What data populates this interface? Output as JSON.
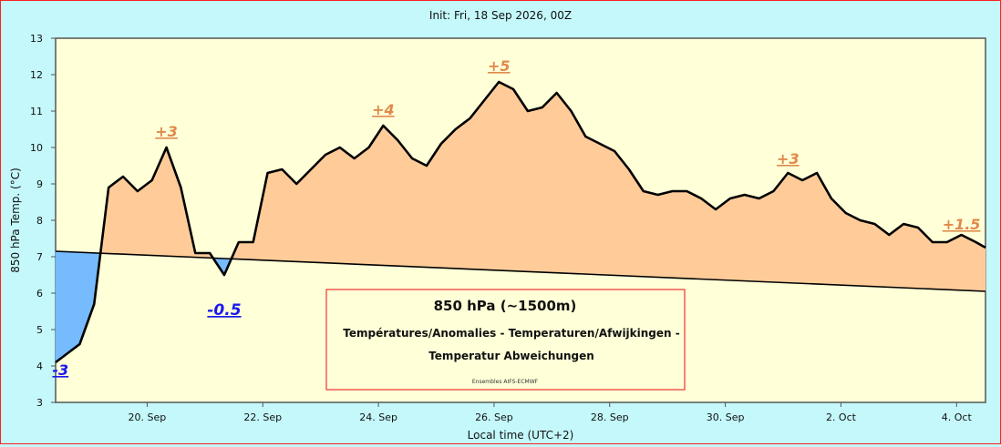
{
  "chart_data": {
    "type": "area",
    "title": "Init: Fri, 18 Sep 2026, 00Z",
    "xlabel": "Local time (UTC+2)",
    "ylabel": "850 hPa Temp. (°C)",
    "ylim": [
      3,
      13
    ],
    "yticks": [
      "3",
      "4",
      "5",
      "6",
      "7",
      "8",
      "9",
      "10",
      "11",
      "12",
      "13"
    ],
    "x_start": "2026-09-18T10:00",
    "x_end": "2026-10-04T12:00",
    "xticks": [
      {
        "label": "20. Sep",
        "at": "2026-09-20T00:00"
      },
      {
        "label": "22. Sep",
        "at": "2026-09-22T00:00"
      },
      {
        "label": "24. Sep",
        "at": "2026-09-24T00:00"
      },
      {
        "label": "26. Sep",
        "at": "2026-09-26T00:00"
      },
      {
        "label": "28. Sep",
        "at": "2026-09-28T00:00"
      },
      {
        "label": "30. Sep",
        "at": "2026-09-30T00:00"
      },
      {
        "label": "2. Oct",
        "at": "2026-10-02T00:00"
      },
      {
        "label": "4. Oct",
        "at": "2026-10-04T00:00"
      }
    ],
    "grid": false,
    "series": [
      {
        "role": "temperature",
        "color": "#000000",
        "points": [
          [
            "2026-09-18T10:00",
            4.1
          ],
          [
            "2026-09-18T15:00",
            4.35
          ],
          [
            "2026-09-18T20:00",
            4.6
          ],
          [
            "2026-09-19T02:00",
            5.7
          ],
          [
            "2026-09-19T08:00",
            8.9
          ],
          [
            "2026-09-19T14:00",
            9.2
          ],
          [
            "2026-09-19T20:00",
            8.8
          ],
          [
            "2026-09-20T02:00",
            9.1
          ],
          [
            "2026-09-20T08:00",
            10.0
          ],
          [
            "2026-09-20T14:00",
            8.9
          ],
          [
            "2026-09-20T20:00",
            7.1
          ],
          [
            "2026-09-21T02:00",
            7.1
          ],
          [
            "2026-09-21T08:00",
            6.5
          ],
          [
            "2026-09-21T14:00",
            7.4
          ],
          [
            "2026-09-21T20:00",
            7.4
          ],
          [
            "2026-09-22T02:00",
            9.3
          ],
          [
            "2026-09-22T08:00",
            9.4
          ],
          [
            "2026-09-22T14:00",
            9.0
          ],
          [
            "2026-09-22T20:00",
            9.4
          ],
          [
            "2026-09-23T02:00",
            9.8
          ],
          [
            "2026-09-23T08:00",
            10.0
          ],
          [
            "2026-09-23T14:00",
            9.7
          ],
          [
            "2026-09-23T20:00",
            10.0
          ],
          [
            "2026-09-24T02:00",
            10.6
          ],
          [
            "2026-09-24T08:00",
            10.2
          ],
          [
            "2026-09-24T14:00",
            9.7
          ],
          [
            "2026-09-24T20:00",
            9.5
          ],
          [
            "2026-09-25T02:00",
            10.1
          ],
          [
            "2026-09-25T08:00",
            10.5
          ],
          [
            "2026-09-25T14:00",
            10.8
          ],
          [
            "2026-09-25T20:00",
            11.3
          ],
          [
            "2026-09-26T02:00",
            11.8
          ],
          [
            "2026-09-26T08:00",
            11.6
          ],
          [
            "2026-09-26T14:00",
            11.0
          ],
          [
            "2026-09-26T20:00",
            11.1
          ],
          [
            "2026-09-27T02:00",
            11.5
          ],
          [
            "2026-09-27T08:00",
            11.0
          ],
          [
            "2026-09-27T14:00",
            10.3
          ],
          [
            "2026-09-27T20:00",
            10.1
          ],
          [
            "2026-09-28T02:00",
            9.9
          ],
          [
            "2026-09-28T08:00",
            9.4
          ],
          [
            "2026-09-28T14:00",
            8.8
          ],
          [
            "2026-09-28T20:00",
            8.7
          ],
          [
            "2026-09-29T02:00",
            8.8
          ],
          [
            "2026-09-29T08:00",
            8.8
          ],
          [
            "2026-09-29T14:00",
            8.6
          ],
          [
            "2026-09-29T20:00",
            8.3
          ],
          [
            "2026-09-30T02:00",
            8.6
          ],
          [
            "2026-09-30T08:00",
            8.7
          ],
          [
            "2026-09-30T14:00",
            8.6
          ],
          [
            "2026-09-30T20:00",
            8.8
          ],
          [
            "2026-10-01T02:00",
            9.3
          ],
          [
            "2026-10-01T08:00",
            9.1
          ],
          [
            "2026-10-01T14:00",
            9.3
          ],
          [
            "2026-10-01T20:00",
            8.6
          ],
          [
            "2026-10-02T02:00",
            8.2
          ],
          [
            "2026-10-02T08:00",
            8.0
          ],
          [
            "2026-10-02T14:00",
            7.9
          ],
          [
            "2026-10-02T20:00",
            7.6
          ],
          [
            "2026-10-03T02:00",
            7.9
          ],
          [
            "2026-10-03T08:00",
            7.8
          ],
          [
            "2026-10-03T14:00",
            7.4
          ],
          [
            "2026-10-03T20:00",
            7.4
          ],
          [
            "2026-10-04T02:00",
            7.6
          ],
          [
            "2026-10-04T08:00",
            7.4
          ],
          [
            "2026-10-04T12:00",
            7.25
          ]
        ]
      },
      {
        "role": "climatology",
        "color": "#000000",
        "points": [
          [
            "2026-09-18T10:00",
            7.15
          ],
          [
            "2026-10-04T12:00",
            6.05
          ]
        ]
      }
    ],
    "fill": {
      "warm": "#ffcc99",
      "cold": "#77bbff"
    },
    "annotations": [
      {
        "text": "-3",
        "at": "2026-09-18T12:00",
        "y": 3.75,
        "color": "#1a1aee",
        "size": 16
      },
      {
        "text": "+3",
        "at": "2026-09-20T08:00",
        "y": 10.3,
        "color": "#e08a4c",
        "size": 16
      },
      {
        "text": "-0.5",
        "at": "2026-09-21T08:00",
        "y": 5.4,
        "color": "#1a1aee",
        "size": 17
      },
      {
        "text": "+4",
        "at": "2026-09-24T02:00",
        "y": 10.9,
        "color": "#e08a4c",
        "size": 16
      },
      {
        "text": "+5",
        "at": "2026-09-26T02:00",
        "y": 12.1,
        "color": "#e08a4c",
        "size": 16
      },
      {
        "text": "+3",
        "at": "2026-10-01T02:00",
        "y": 9.55,
        "color": "#e08a4c",
        "size": 16
      },
      {
        "text": "+1.5",
        "at": "2026-10-04T02:00",
        "y": 7.75,
        "color": "#e08a4c",
        "size": 16
      }
    ],
    "legend_box": {
      "title": "850 hPa (~1500m)",
      "line1": "Températures/Anomalies - Temperaturen/Afwijkingen -",
      "line2": "Temperatur Abweichungen",
      "credit": "Ensembles AIFS-ECMWF",
      "placement": "bottom-center",
      "border_color": "#ee3333"
    },
    "colors": {
      "page_background": "#c4f8fb",
      "plot_background": "#ffffd8",
      "frame": "#ff2020"
    }
  }
}
